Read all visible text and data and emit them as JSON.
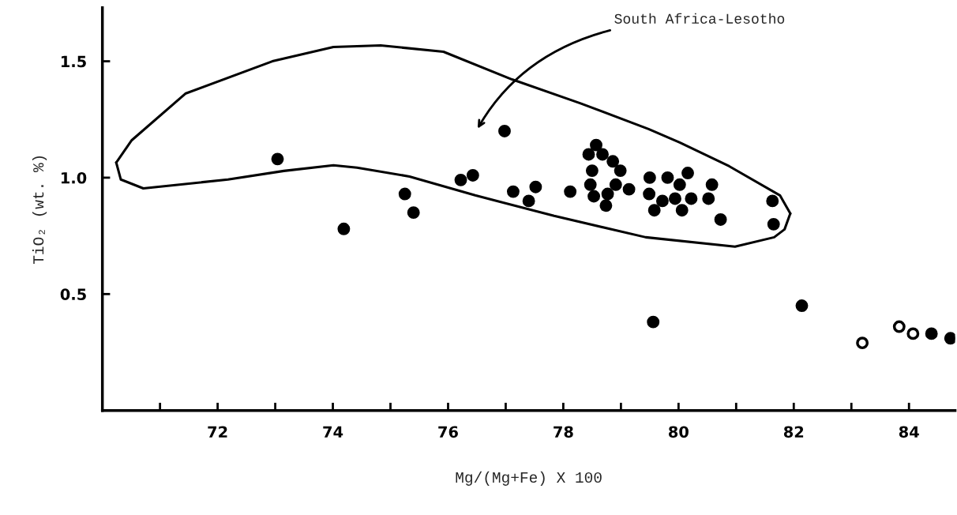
{
  "chart_data": {
    "type": "scatter",
    "xlabel": "Mg/(Mg+Fe) X 100",
    "ylabel": "TiO₂ (wt. %)",
    "xlim": [
      70.0,
      84.8
    ],
    "ylim": [
      0,
      1.73
    ],
    "xticks": [
      {
        "value": 71,
        "label": null
      },
      72,
      {
        "value": 73,
        "label": null
      },
      74,
      {
        "value": 75,
        "label": null
      },
      76,
      {
        "value": 77,
        "label": null
      },
      78,
      {
        "value": 79,
        "label": null
      },
      80,
      {
        "value": 81,
        "label": null
      },
      82,
      {
        "value": 83,
        "label": null
      },
      84
    ],
    "yticks": [
      {
        "value": 0.5,
        "label": "0.5"
      },
      {
        "value": 1,
        "label": "1.0"
      },
      {
        "value": 1.5,
        "label": "1.5"
      }
    ],
    "grid": false,
    "legend": false,
    "marker": "circle",
    "annotations": [
      "South Africa-Lesotho"
    ],
    "series": [
      {
        "type": "line",
        "color": "#000000",
        "marker": "none",
        "line_style": "solid",
        "x": [
          70.24,
          70.32,
          70.71,
          72.18,
          73.15,
          74.01,
          74.42,
          75.33,
          76.47,
          77.84,
          79.43,
          80.98,
          81.66,
          81.84,
          81.94
        ],
        "values": [
          1.065,
          0.992,
          0.954,
          0.992,
          1.029,
          1.053,
          1.043,
          1.005,
          0.924,
          0.836,
          0.744,
          0.704,
          0.744,
          0.778,
          0.846
        ]
      },
      {
        "type": "line",
        "color": "#000000",
        "marker": "none",
        "line_style": "solid",
        "x": [
          70.24,
          70.51,
          71.44,
          72.95,
          74.01,
          74.83,
          75.92,
          77.11,
          78.29,
          79.48,
          80.02,
          80.88,
          81.76,
          81.94
        ],
        "values": [
          1.065,
          1.161,
          1.361,
          1.5,
          1.561,
          1.568,
          1.541,
          1.422,
          1.32,
          1.209,
          1.151,
          1.049,
          0.924,
          0.846
        ]
      },
      {
        "color": "#000000",
        "x": [
          73.04,
          74.19,
          75.25,
          75.4,
          76.22,
          76.43,
          76.98,
          77.13,
          77.52,
          77.4,
          78.12,
          78.57,
          78.44,
          78.68,
          78.86,
          78.5,
          78.99,
          78.47,
          78.91,
          78.53,
          78.77,
          78.74,
          79.14,
          79.5,
          79.49,
          79.81,
          80.16,
          80.02,
          80.58,
          79.72,
          79.94,
          80.22,
          80.52,
          79.58,
          80.06,
          80.73,
          81.63,
          81.65,
          79.56,
          82.14,
          84.39,
          84.72
        ],
        "values": [
          1.08,
          0.78,
          0.93,
          0.85,
          0.99,
          1.01,
          1.2,
          0.94,
          0.96,
          0.9,
          0.94,
          1.14,
          1.1,
          1.1,
          1.07,
          1.03,
          1.03,
          0.97,
          0.97,
          0.92,
          0.93,
          0.88,
          0.95,
          1.0,
          0.93,
          1.0,
          1.02,
          0.97,
          0.97,
          0.9,
          0.91,
          0.91,
          0.91,
          0.86,
          0.86,
          0.82,
          0.9,
          0.8,
          0.38,
          0.45,
          0.33,
          0.31
        ]
      },
      {
        "color": "#ffffff",
        "x": [
          83.19,
          83.83,
          84.07
        ],
        "values": [
          0.29,
          0.36,
          0.33
        ]
      }
    ]
  }
}
